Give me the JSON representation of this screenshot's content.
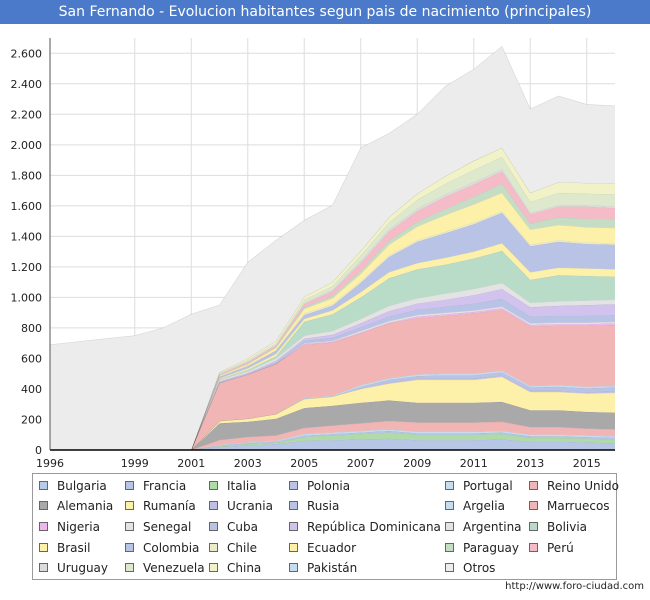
{
  "title": "San Fernando - Evolucion habitantes segun pais de nacimiento (principales)",
  "source": "http://www.foro-ciudad.com",
  "chart_data": {
    "type": "area",
    "stacked": true,
    "x": [
      1996,
      1998,
      1999,
      2000,
      2001,
      2002,
      2003,
      2004,
      2005,
      2006,
      2007,
      2008,
      2009,
      2010,
      2011,
      2012,
      2013,
      2014,
      2015,
      2016
    ],
    "x_ticks": [
      1996,
      1999,
      2001,
      2003,
      2005,
      2007,
      2009,
      2011,
      2013,
      2015
    ],
    "y_ticks": [
      0,
      200,
      400,
      600,
      800,
      1000,
      1200,
      1400,
      1600,
      1800,
      2000,
      2200,
      2400,
      2600
    ],
    "y_tick_labels": [
      "0",
      "200",
      "400",
      "600",
      "800",
      "1.000",
      "1.200",
      "1.400",
      "1.600",
      "1.800",
      "2.000",
      "2.200",
      "2.400",
      "2.600"
    ],
    "ylim": [
      0,
      2700
    ],
    "xlim": [
      1996,
      2016
    ],
    "grid": true,
    "legend_position": "bottom",
    "total": [
      690,
      730,
      750,
      800,
      890,
      960,
      1160,
      1340,
      1690,
      1740,
      1960,
      2120,
      2150,
      2280,
      2390,
      2460,
      2240,
      2300,
      2270,
      2250
    ],
    "series": [
      {
        "name": "Bulgaria",
        "color": "#b5cbe8",
        "values": [
          0,
          0,
          0,
          0,
          0,
          0,
          0,
          0,
          5,
          5,
          5,
          5,
          5,
          5,
          5,
          5,
          5,
          5,
          5,
          5
        ]
      },
      {
        "name": "Francia",
        "color": "#b8c6e6",
        "values": [
          0,
          0,
          0,
          0,
          0,
          20,
          30,
          40,
          55,
          60,
          65,
          70,
          60,
          60,
          60,
          65,
          50,
          50,
          45,
          40
        ]
      },
      {
        "name": "Italia",
        "color": "#aedba8",
        "values": [
          0,
          0,
          0,
          0,
          0,
          5,
          10,
          10,
          25,
          30,
          35,
          40,
          35,
          35,
          35,
          35,
          25,
          25,
          25,
          25
        ]
      },
      {
        "name": "Polonia",
        "color": "#b8c3e6",
        "values": [
          0,
          0,
          0,
          0,
          0,
          5,
          5,
          5,
          10,
          10,
          10,
          10,
          10,
          10,
          10,
          10,
          10,
          10,
          10,
          10
        ]
      },
      {
        "name": "Portugal",
        "color": "#c5ddee",
        "values": [
          0,
          0,
          0,
          0,
          0,
          5,
          5,
          5,
          10,
          10,
          10,
          10,
          10,
          10,
          10,
          10,
          10,
          10,
          10,
          10
        ]
      },
      {
        "name": "Reino Unido",
        "color": "#f2b5b5",
        "values": [
          0,
          0,
          0,
          0,
          0,
          30,
          35,
          35,
          40,
          45,
          50,
          55,
          60,
          60,
          60,
          60,
          50,
          50,
          45,
          45
        ]
      },
      {
        "name": "Alemania",
        "color": "#a9a9a9",
        "values": [
          0,
          0,
          0,
          0,
          0,
          110,
          100,
          110,
          130,
          130,
          135,
          135,
          130,
          130,
          130,
          130,
          110,
          110,
          110,
          110
        ]
      },
      {
        "name": "Rumanía",
        "color": "#fdf0a8",
        "values": [
          0,
          0,
          0,
          0,
          0,
          15,
          20,
          30,
          60,
          60,
          90,
          110,
          150,
          150,
          150,
          165,
          120,
          120,
          120,
          130
        ]
      },
      {
        "name": "Ucrania",
        "color": "#bfbfe6",
        "values": [
          0,
          0,
          0,
          0,
          0,
          0,
          0,
          0,
          0,
          0,
          5,
          10,
          10,
          10,
          10,
          10,
          10,
          10,
          10,
          10
        ]
      },
      {
        "name": "Rusia",
        "color": "#b8c3e6",
        "values": [
          0,
          0,
          0,
          0,
          0,
          0,
          0,
          0,
          0,
          0,
          10,
          15,
          15,
          20,
          20,
          20,
          20,
          25,
          25,
          25
        ]
      },
      {
        "name": "Argelia",
        "color": "#c5ddee",
        "values": [
          0,
          0,
          0,
          0,
          0,
          0,
          0,
          0,
          5,
          5,
          10,
          10,
          10,
          10,
          10,
          10,
          10,
          10,
          10,
          10
        ]
      },
      {
        "name": "Marruecos",
        "color": "#f2b5b5",
        "values": [
          0,
          0,
          0,
          0,
          0,
          250,
          290,
          330,
          350,
          350,
          340,
          360,
          370,
          380,
          395,
          400,
          390,
          390,
          400,
          400
        ]
      },
      {
        "name": "Nigeria",
        "color": "#eeb8ee",
        "values": [
          0,
          0,
          0,
          0,
          0,
          0,
          0,
          0,
          5,
          5,
          5,
          5,
          10,
          10,
          10,
          10,
          10,
          10,
          10,
          10
        ]
      },
      {
        "name": "Senegal",
        "color": "#e3e3e3",
        "values": [
          0,
          0,
          0,
          0,
          0,
          0,
          0,
          0,
          5,
          5,
          10,
          10,
          10,
          10,
          10,
          10,
          10,
          10,
          10,
          10
        ]
      },
      {
        "name": "Cuba",
        "color": "#b8c3e6",
        "values": [
          0,
          0,
          0,
          0,
          0,
          5,
          5,
          10,
          15,
          20,
          25,
          30,
          35,
          40,
          45,
          50,
          45,
          45,
          45,
          45
        ]
      },
      {
        "name": "República Dominicana",
        "color": "#d2c2ee",
        "values": [
          0,
          0,
          0,
          0,
          0,
          5,
          5,
          10,
          15,
          20,
          25,
          35,
          40,
          45,
          55,
          65,
          60,
          65,
          70,
          70
        ]
      },
      {
        "name": "Argentina",
        "color": "#e3e3e3",
        "values": [
          0,
          0,
          0,
          0,
          0,
          10,
          10,
          15,
          20,
          25,
          30,
          35,
          35,
          40,
          40,
          40,
          30,
          30,
          30,
          30
        ]
      },
      {
        "name": "Bolivia",
        "color": "#b8dcc8",
        "values": [
          0,
          0,
          0,
          0,
          0,
          5,
          10,
          15,
          90,
          110,
          140,
          180,
          190,
          190,
          200,
          210,
          150,
          170,
          160,
          150
        ]
      },
      {
        "name": "Brasil",
        "color": "#fdf0a8",
        "values": [
          0,
          0,
          0,
          0,
          0,
          5,
          10,
          15,
          20,
          25,
          35,
          40,
          40,
          45,
          45,
          50,
          50,
          50,
          50,
          50
        ]
      },
      {
        "name": "Colombia",
        "color": "#b8c3e6",
        "values": [
          0,
          0,
          0,
          0,
          0,
          10,
          15,
          20,
          25,
          30,
          60,
          100,
          140,
          160,
          180,
          200,
          170,
          170,
          160,
          160
        ]
      },
      {
        "name": "Chile",
        "color": "#ebebcc",
        "values": [
          0,
          0,
          0,
          0,
          0,
          5,
          5,
          5,
          10,
          10,
          10,
          10,
          10,
          10,
          10,
          10,
          10,
          10,
          10,
          10
        ]
      },
      {
        "name": "Ecuador",
        "color": "#fdf0a8",
        "values": [
          0,
          0,
          0,
          0,
          0,
          5,
          10,
          15,
          30,
          40,
          50,
          70,
          90,
          110,
          120,
          120,
          100,
          100,
          100,
          100
        ]
      },
      {
        "name": "Paraguay",
        "color": "#c5ddc5",
        "values": [
          0,
          0,
          0,
          0,
          0,
          0,
          0,
          5,
          10,
          15,
          20,
          25,
          30,
          40,
          50,
          60,
          40,
          50,
          55,
          60
        ]
      },
      {
        "name": "Perú",
        "color": "#f5bcc8",
        "values": [
          0,
          0,
          0,
          0,
          0,
          5,
          10,
          10,
          20,
          30,
          50,
          60,
          70,
          80,
          80,
          80,
          60,
          70,
          80,
          70
        ]
      },
      {
        "name": "Uruguay",
        "color": "#dcdcdc",
        "values": [
          0,
          0,
          0,
          0,
          0,
          5,
          5,
          5,
          10,
          10,
          15,
          15,
          15,
          15,
          15,
          15,
          10,
          10,
          10,
          10
        ]
      },
      {
        "name": "Venezuela",
        "color": "#dde8cc",
        "values": [
          0,
          0,
          0,
          0,
          0,
          5,
          10,
          10,
          20,
          25,
          35,
          45,
          60,
          70,
          80,
          80,
          70,
          80,
          75,
          80
        ]
      },
      {
        "name": "China",
        "color": "#f2f2c8",
        "values": [
          0,
          0,
          0,
          0,
          0,
          5,
          10,
          15,
          20,
          25,
          30,
          35,
          40,
          50,
          60,
          60,
          60,
          70,
          70,
          70
        ]
      },
      {
        "name": "Pakistán",
        "color": "#c5ddee",
        "values": [
          0,
          0,
          0,
          0,
          0,
          0,
          0,
          0,
          0,
          0,
          0,
          0,
          0,
          0,
          0,
          0,
          0,
          0,
          0,
          0
        ]
      },
      {
        "name": "Otros",
        "color": "#ececec",
        "values": [
          690,
          730,
          750,
          800,
          890,
          440,
          630,
          660,
          500,
          505,
          675,
          550,
          520,
          590,
          600,
          665,
          550,
          565,
          515,
          510
        ]
      }
    ]
  }
}
